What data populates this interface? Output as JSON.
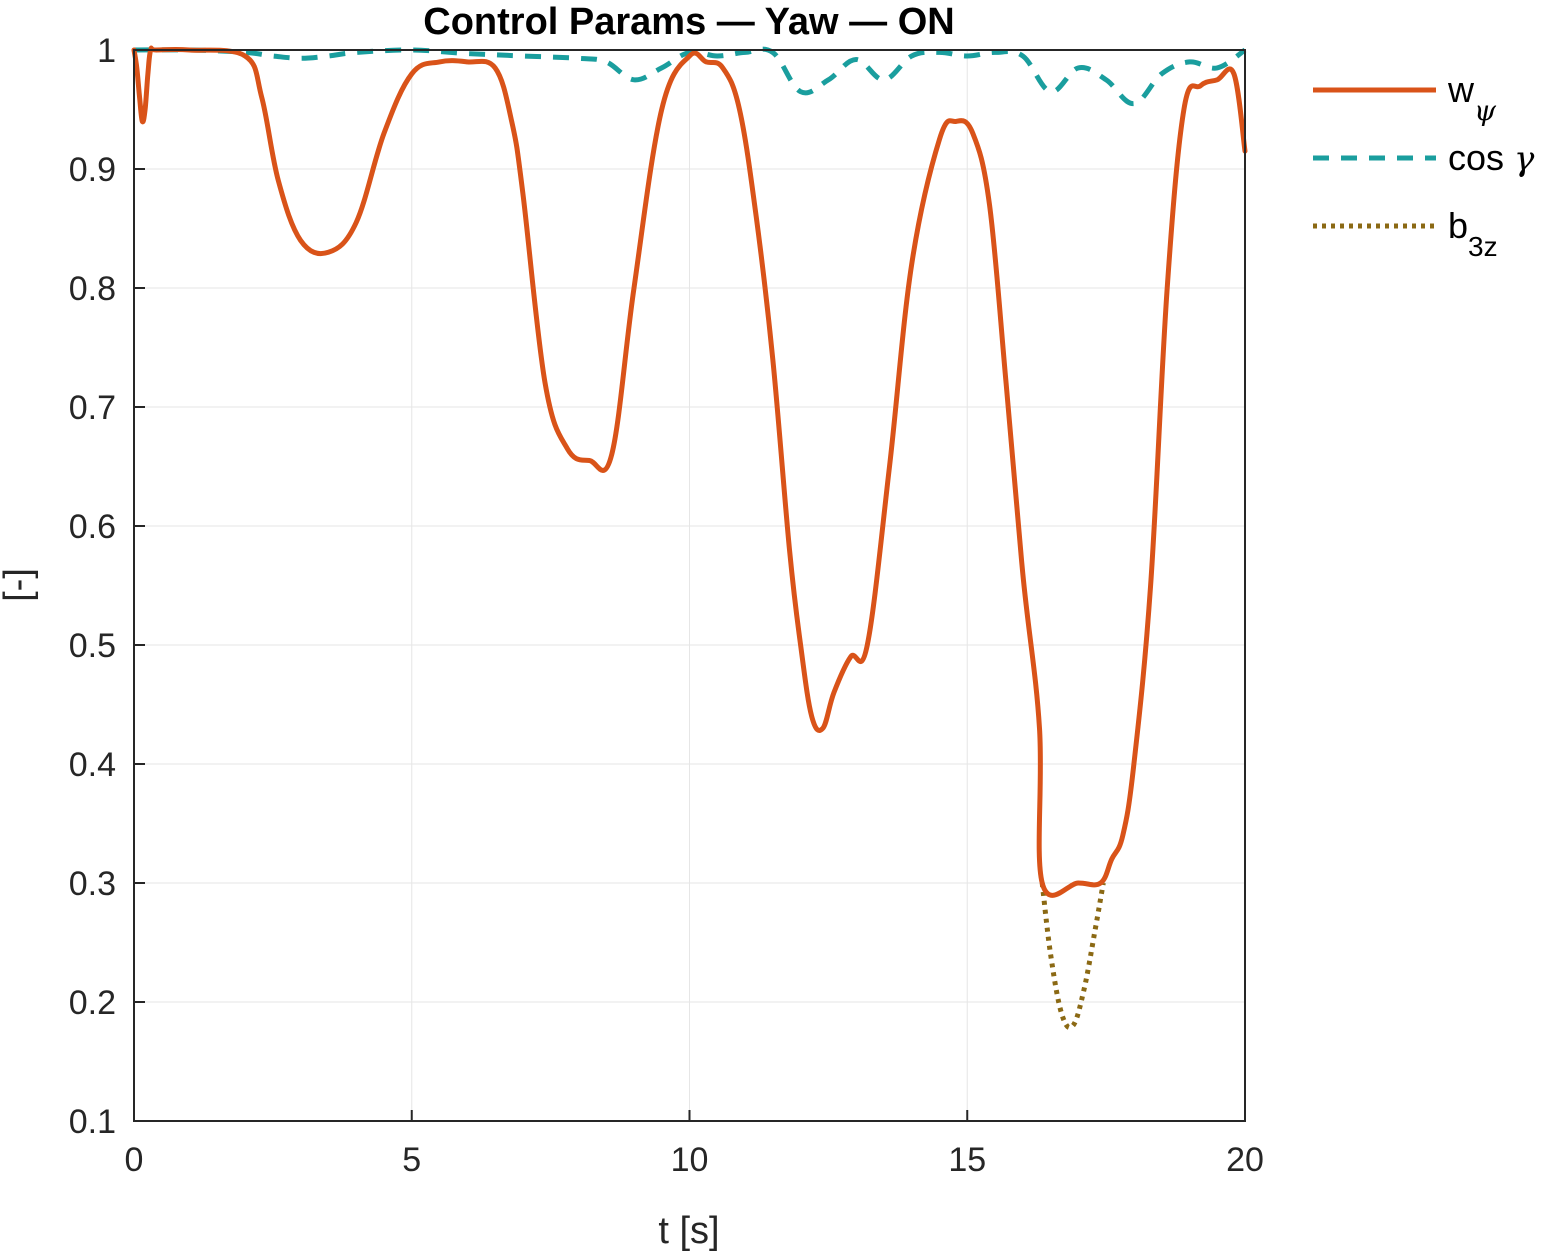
{
  "chart_data": {
    "type": "line",
    "title": "Control Params — Yaw — ON",
    "xlabel": "t [s]",
    "ylabel": "[-]",
    "xlim": [
      0,
      20
    ],
    "ylim": [
      0.1,
      1.0
    ],
    "xticks": [
      "0",
      "5",
      "10",
      "15",
      "20"
    ],
    "yticks": [
      "0.1",
      "0.2",
      "0.3",
      "0.4",
      "0.5",
      "0.6",
      "0.7",
      "0.8",
      "0.9",
      "1"
    ],
    "grid": true,
    "legend_position": "outside-right-top",
    "series": [
      {
        "legend_main": "w",
        "legend_sub": "ψ",
        "color": "#D95319",
        "style": "solid",
        "x": [
          0,
          0.05,
          0.1,
          0.15,
          0.2,
          0.25,
          0.3,
          0.4,
          1.0,
          2.0,
          2.3,
          2.6,
          3.0,
          3.5,
          4.0,
          4.5,
          5.0,
          5.5,
          6.0,
          6.5,
          6.8,
          7.0,
          7.4,
          7.8,
          8.2,
          8.6,
          9.0,
          9.5,
          10.0,
          10.3,
          10.6,
          10.9,
          11.2,
          11.5,
          11.8,
          12.0,
          12.2,
          12.4,
          12.6,
          12.9,
          13.2,
          13.6,
          14.0,
          14.5,
          14.8,
          15.1,
          15.4,
          15.7,
          16.0,
          16.3,
          16.35,
          17.0,
          17.4,
          17.6,
          17.8,
          18.0,
          18.3,
          18.6,
          18.9,
          19.2,
          19.5,
          19.8,
          20.0
        ],
        "y": [
          1.0,
          0.985,
          0.96,
          0.94,
          0.95,
          0.98,
          1.0,
          1.0,
          1.0,
          0.995,
          0.96,
          0.89,
          0.84,
          0.83,
          0.855,
          0.93,
          0.98,
          0.99,
          0.99,
          0.985,
          0.94,
          0.88,
          0.72,
          0.665,
          0.655,
          0.66,
          0.8,
          0.95,
          0.995,
          0.99,
          0.985,
          0.95,
          0.86,
          0.74,
          0.58,
          0.5,
          0.44,
          0.43,
          0.46,
          0.49,
          0.5,
          0.65,
          0.82,
          0.925,
          0.94,
          0.93,
          0.87,
          0.72,
          0.56,
          0.43,
          0.3,
          0.3,
          0.3,
          0.32,
          0.34,
          0.4,
          0.55,
          0.8,
          0.95,
          0.97,
          0.975,
          0.98,
          0.915
        ]
      },
      {
        "legend_main": "cos ",
        "legend_sub": "γ",
        "color": "#1A9E9E",
        "style": "dashed",
        "x": [
          0,
          1.0,
          2.0,
          2.5,
          3.0,
          3.5,
          4.0,
          5.0,
          6.0,
          7.0,
          8.0,
          8.5,
          9.0,
          9.5,
          10.0,
          10.5,
          11.0,
          11.5,
          12.0,
          12.5,
          13.0,
          13.5,
          14.0,
          14.5,
          15.0,
          15.5,
          16.0,
          16.5,
          17.0,
          17.5,
          18.0,
          18.5,
          19.0,
          19.5,
          20.0
        ],
        "y": [
          1.0,
          1.0,
          0.998,
          0.995,
          0.993,
          0.995,
          0.998,
          1.0,
          0.997,
          0.995,
          0.993,
          0.99,
          0.975,
          0.985,
          0.998,
          0.995,
          0.998,
          0.998,
          0.965,
          0.975,
          0.992,
          0.975,
          0.995,
          0.998,
          0.995,
          0.998,
          0.995,
          0.965,
          0.985,
          0.975,
          0.955,
          0.98,
          0.99,
          0.985,
          1.0
        ]
      },
      {
        "legend_main": "b",
        "legend_sub": "3z",
        "color": "#8B6914",
        "style": "dotted",
        "x": [
          16.35,
          16.5,
          16.7,
          16.9,
          17.1,
          17.3,
          17.45
        ],
        "y": [
          0.3,
          0.24,
          0.19,
          0.18,
          0.21,
          0.26,
          0.3
        ]
      }
    ]
  }
}
